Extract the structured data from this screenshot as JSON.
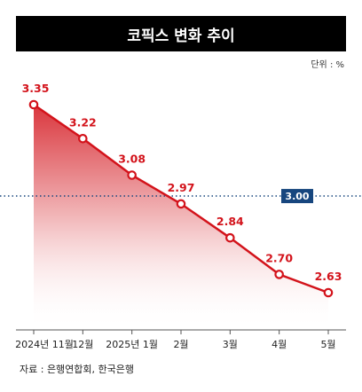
{
  "title": "코픽스 변화 추이",
  "unit_label": "단위 : %",
  "source": "자료 : 은행연합회, 한국은행",
  "colors": {
    "line": "#d3131b",
    "fill_top": "#d3131b",
    "fill_bottom": "#ffffff",
    "reference": "#17467e",
    "title_bg": "#000000"
  },
  "chart_data": {
    "type": "area",
    "categories": [
      "2024년 11월",
      "12월",
      "2025년 1월",
      "2월",
      "3월",
      "4월",
      "5월"
    ],
    "values": [
      3.35,
      3.22,
      3.08,
      2.97,
      2.84,
      2.7,
      2.63
    ],
    "value_labels": [
      "3.35",
      "3.22",
      "3.08",
      "2.97",
      "2.84",
      "2.70",
      "2.63"
    ],
    "reference_line": {
      "value": 3.0,
      "label": "3.00",
      "style": "dotted"
    },
    "ylim": [
      2.55,
      3.37
    ],
    "grid": false,
    "legend": "none"
  }
}
